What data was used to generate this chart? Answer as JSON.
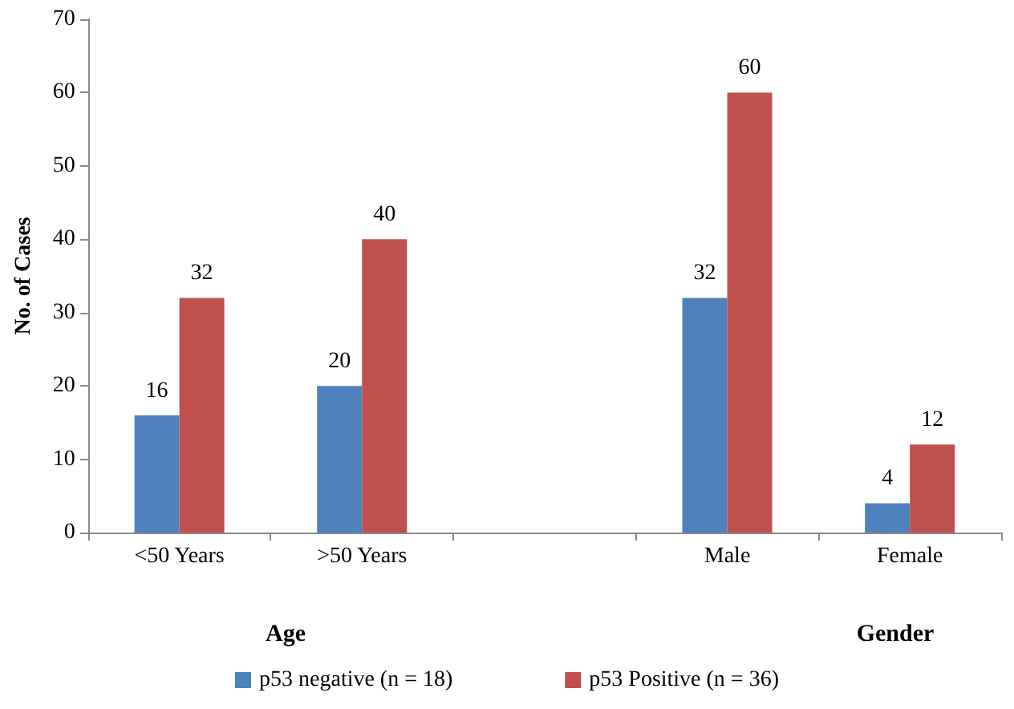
{
  "chart_data": {
    "type": "bar",
    "categories": [
      "<50 Years",
      ">50 Years",
      null,
      "Male",
      "Female"
    ],
    "series": [
      {
        "name": "p53 negative (n = 18)",
        "color": "#4f81bd",
        "values": [
          16,
          20,
          null,
          32,
          4
        ]
      },
      {
        "name": "p53 Positive (n = 36)",
        "color": "#c0504d",
        "values": [
          32,
          40,
          null,
          60,
          12
        ]
      }
    ],
    "ylabel": "No. of Cases",
    "ylim": [
      0,
      70
    ],
    "yticks": [
      0,
      10,
      20,
      30,
      40,
      50,
      60,
      70
    ],
    "grid": false,
    "data_labels": true,
    "legend": "bottom",
    "annotations": [
      "Age",
      "Gender"
    ]
  }
}
